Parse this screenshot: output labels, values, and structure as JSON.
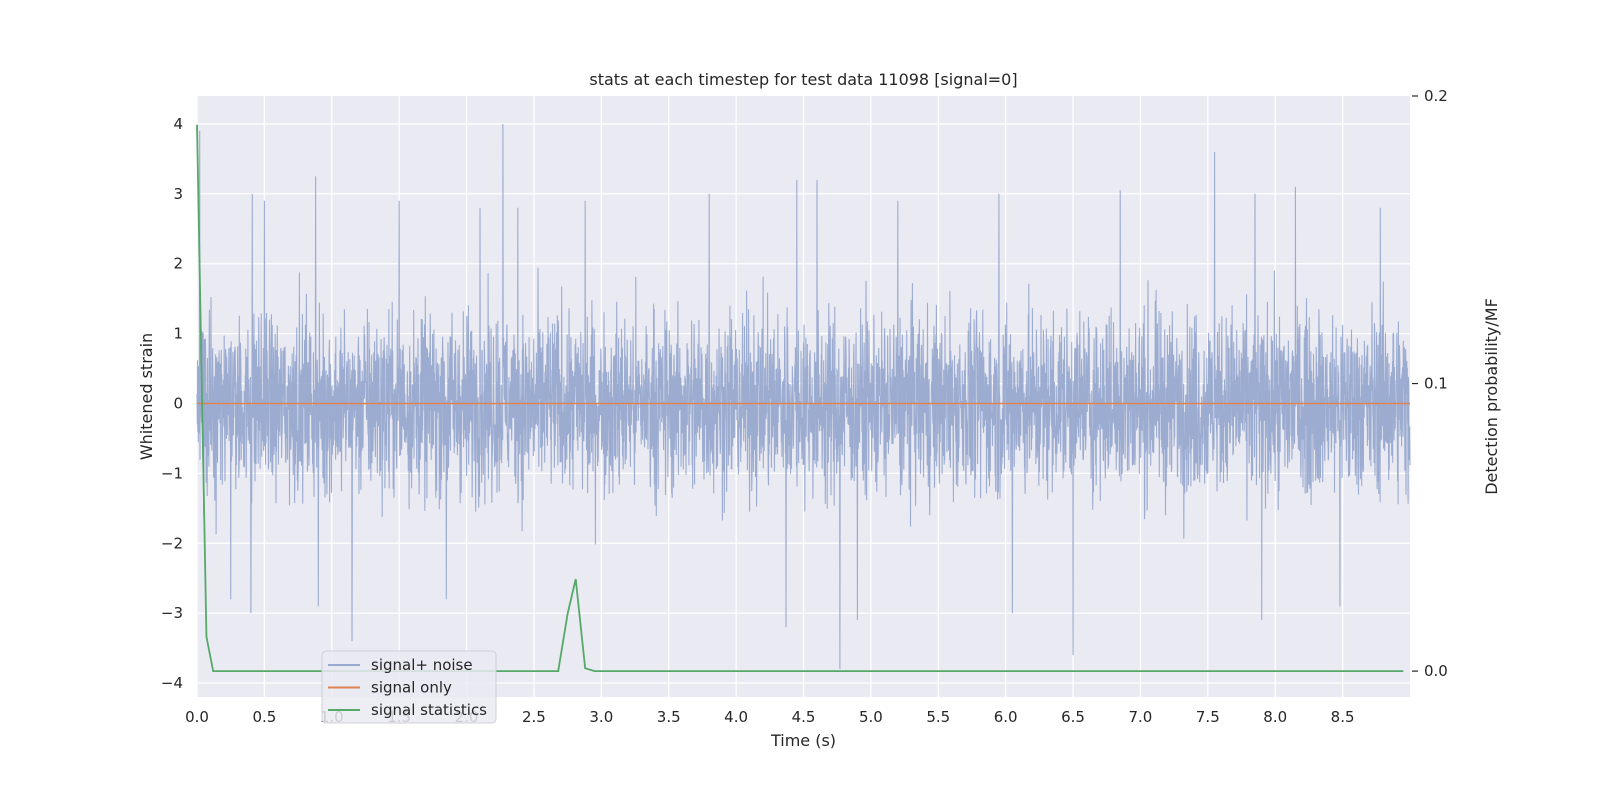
{
  "chart_data": {
    "type": "line",
    "title": "stats at each timestep for test data 11098 [signal=0]",
    "xlabel": "Time (s)",
    "ylabel": "Whitened strain",
    "y2label": "Detection probability/MF",
    "xlim": [
      0.0,
      9.0
    ],
    "ylim": [
      -4.2,
      4.4
    ],
    "y2lim": [
      -0.009,
      0.2
    ],
    "x_ticks": [
      "0.0",
      "0.5",
      "1.0",
      "1.5",
      "2.0",
      "2.5",
      "3.0",
      "3.5",
      "4.0",
      "4.5",
      "5.0",
      "5.5",
      "6.0",
      "6.5",
      "7.0",
      "7.5",
      "8.0",
      "8.5"
    ],
    "y_ticks": [
      "4",
      "3",
      "2",
      "1",
      "0",
      "−1",
      "−2",
      "−3",
      "−4"
    ],
    "y2_ticks": [
      "0.2",
      "0.1",
      "0.0"
    ],
    "grid": true,
    "legend_position": "lower-left",
    "series": [
      {
        "name": "signal+ noise",
        "color": "#98a9cf",
        "noise_range": [
          -1.6,
          1.6
        ],
        "spikes": [
          {
            "x": 0.02,
            "y": 3.9
          },
          {
            "x": 0.05,
            "y": -1.6
          },
          {
            "x": 0.25,
            "y": -2.8
          },
          {
            "x": 0.4,
            "y": -3.0
          },
          {
            "x": 0.41,
            "y": 3.0
          },
          {
            "x": 0.5,
            "y": 2.9
          },
          {
            "x": 0.88,
            "y": 3.25
          },
          {
            "x": 0.9,
            "y": -2.9
          },
          {
            "x": 1.15,
            "y": -3.4
          },
          {
            "x": 1.5,
            "y": 2.9
          },
          {
            "x": 1.85,
            "y": -2.8
          },
          {
            "x": 2.1,
            "y": 2.8
          },
          {
            "x": 2.27,
            "y": 4.0
          },
          {
            "x": 2.38,
            "y": 2.8
          },
          {
            "x": 2.88,
            "y": 2.9
          },
          {
            "x": 3.8,
            "y": 3.0
          },
          {
            "x": 4.37,
            "y": -3.2
          },
          {
            "x": 4.45,
            "y": 3.2
          },
          {
            "x": 4.6,
            "y": 3.2
          },
          {
            "x": 4.77,
            "y": -3.8
          },
          {
            "x": 4.9,
            "y": -3.1
          },
          {
            "x": 5.2,
            "y": 2.9
          },
          {
            "x": 5.95,
            "y": 3.0
          },
          {
            "x": 6.05,
            "y": -3.0
          },
          {
            "x": 6.5,
            "y": -3.6
          },
          {
            "x": 6.85,
            "y": 3.05
          },
          {
            "x": 7.55,
            "y": 3.6
          },
          {
            "x": 7.85,
            "y": 3.0
          },
          {
            "x": 7.9,
            "y": -3.1
          },
          {
            "x": 8.15,
            "y": 3.1
          },
          {
            "x": 8.48,
            "y": -2.9
          },
          {
            "x": 8.78,
            "y": 2.8
          }
        ]
      },
      {
        "name": "signal only",
        "color": "#dd8452",
        "x": [
          0.0,
          9.0
        ],
        "values": [
          0.0,
          0.0
        ]
      },
      {
        "name": "signal statistics",
        "color": "#55a868",
        "axis": "right",
        "x": [
          0.0,
          0.07,
          0.12,
          0.2,
          0.5,
          1.0,
          1.5,
          2.0,
          2.5,
          2.68,
          2.75,
          2.81,
          2.88,
          2.95,
          3.5,
          4.0,
          5.0,
          6.0,
          7.0,
          8.0,
          8.95
        ],
        "values": [
          0.19,
          0.012,
          0.0,
          0.0,
          0.0,
          0.0,
          0.0,
          0.0,
          0.0,
          0.0,
          0.02,
          0.032,
          0.001,
          0.0,
          0.0,
          0.0,
          0.0,
          0.0,
          0.0,
          0.0,
          0.0
        ]
      }
    ]
  }
}
